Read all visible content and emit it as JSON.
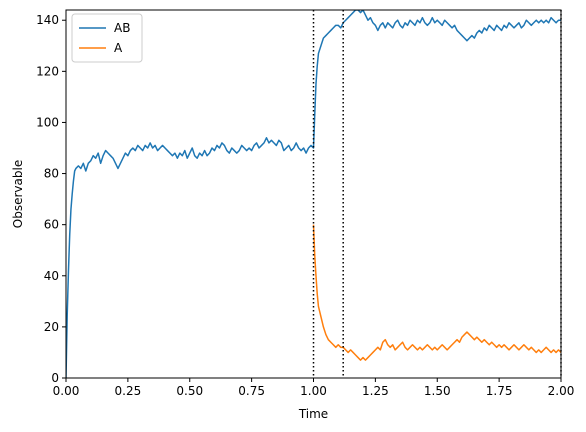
{
  "chart_data": {
    "type": "line",
    "xlabel": "Time",
    "ylabel": "Observable",
    "xlim": [
      0,
      2
    ],
    "ylim": [
      0,
      144
    ],
    "xticks": [
      0,
      0.25,
      0.5,
      0.75,
      1.0,
      1.25,
      1.5,
      1.75,
      2.0
    ],
    "xtick_labels": [
      "0.00",
      "0.25",
      "0.50",
      "0.75",
      "1.00",
      "1.25",
      "1.50",
      "1.75",
      "2.00"
    ],
    "yticks": [
      0,
      20,
      40,
      60,
      80,
      100,
      120,
      140
    ],
    "ytick_labels": [
      "0",
      "20",
      "40",
      "60",
      "80",
      "100",
      "120",
      "140"
    ],
    "grid": false,
    "legend_position": "top-left",
    "vlines": [
      1.0,
      1.12,
      2.0
    ],
    "vline_style": "dotted",
    "vline_color": "#000000",
    "series": [
      {
        "name": "AB",
        "color": "#1f77b4",
        "points": [
          [
            0.0,
            0
          ],
          [
            0.005,
            25
          ],
          [
            0.01,
            42
          ],
          [
            0.015,
            56
          ],
          [
            0.02,
            66
          ],
          [
            0.025,
            72
          ],
          [
            0.03,
            77
          ],
          [
            0.035,
            81
          ],
          [
            0.04,
            82
          ],
          [
            0.05,
            83
          ],
          [
            0.06,
            82
          ],
          [
            0.07,
            84
          ],
          [
            0.08,
            81
          ],
          [
            0.09,
            84
          ],
          [
            0.1,
            85
          ],
          [
            0.11,
            87
          ],
          [
            0.12,
            86
          ],
          [
            0.13,
            88
          ],
          [
            0.14,
            84
          ],
          [
            0.15,
            87
          ],
          [
            0.16,
            89
          ],
          [
            0.17,
            88
          ],
          [
            0.18,
            87
          ],
          [
            0.19,
            86
          ],
          [
            0.2,
            84
          ],
          [
            0.21,
            82
          ],
          [
            0.22,
            84
          ],
          [
            0.23,
            86
          ],
          [
            0.24,
            88
          ],
          [
            0.25,
            87
          ],
          [
            0.26,
            89
          ],
          [
            0.27,
            90
          ],
          [
            0.28,
            89
          ],
          [
            0.29,
            91
          ],
          [
            0.3,
            90
          ],
          [
            0.31,
            89
          ],
          [
            0.32,
            91
          ],
          [
            0.33,
            90
          ],
          [
            0.34,
            92
          ],
          [
            0.35,
            90
          ],
          [
            0.36,
            91
          ],
          [
            0.37,
            89
          ],
          [
            0.38,
            90
          ],
          [
            0.39,
            91
          ],
          [
            0.4,
            90
          ],
          [
            0.41,
            89
          ],
          [
            0.42,
            88
          ],
          [
            0.43,
            87
          ],
          [
            0.44,
            88
          ],
          [
            0.45,
            86
          ],
          [
            0.46,
            88
          ],
          [
            0.47,
            87
          ],
          [
            0.48,
            89
          ],
          [
            0.49,
            86
          ],
          [
            0.5,
            88
          ],
          [
            0.51,
            90
          ],
          [
            0.52,
            87
          ],
          [
            0.53,
            86
          ],
          [
            0.54,
            88
          ],
          [
            0.55,
            87
          ],
          [
            0.56,
            89
          ],
          [
            0.57,
            87
          ],
          [
            0.58,
            88
          ],
          [
            0.59,
            90
          ],
          [
            0.6,
            89
          ],
          [
            0.61,
            91
          ],
          [
            0.62,
            90
          ],
          [
            0.63,
            92
          ],
          [
            0.64,
            91
          ],
          [
            0.65,
            89
          ],
          [
            0.66,
            88
          ],
          [
            0.67,
            90
          ],
          [
            0.68,
            89
          ],
          [
            0.69,
            88
          ],
          [
            0.7,
            89
          ],
          [
            0.71,
            91
          ],
          [
            0.72,
            90
          ],
          [
            0.73,
            89
          ],
          [
            0.74,
            90
          ],
          [
            0.75,
            89
          ],
          [
            0.76,
            91
          ],
          [
            0.77,
            92
          ],
          [
            0.78,
            90
          ],
          [
            0.79,
            91
          ],
          [
            0.8,
            92
          ],
          [
            0.81,
            94
          ],
          [
            0.82,
            92
          ],
          [
            0.83,
            93
          ],
          [
            0.84,
            92
          ],
          [
            0.85,
            91
          ],
          [
            0.86,
            93
          ],
          [
            0.87,
            92
          ],
          [
            0.88,
            89
          ],
          [
            0.89,
            90
          ],
          [
            0.9,
            91
          ],
          [
            0.91,
            89
          ],
          [
            0.92,
            90
          ],
          [
            0.93,
            92
          ],
          [
            0.94,
            90
          ],
          [
            0.95,
            89
          ],
          [
            0.96,
            90
          ],
          [
            0.97,
            88
          ],
          [
            0.98,
            90
          ],
          [
            0.99,
            91
          ],
          [
            1.0,
            90
          ],
          [
            1.005,
            103
          ],
          [
            1.01,
            115
          ],
          [
            1.015,
            122
          ],
          [
            1.02,
            127
          ],
          [
            1.03,
            130
          ],
          [
            1.04,
            133
          ],
          [
            1.05,
            134
          ],
          [
            1.06,
            135
          ],
          [
            1.07,
            136
          ],
          [
            1.08,
            137
          ],
          [
            1.09,
            138
          ],
          [
            1.1,
            138
          ],
          [
            1.11,
            137
          ],
          [
            1.12,
            139
          ],
          [
            1.13,
            140
          ],
          [
            1.14,
            141
          ],
          [
            1.15,
            142
          ],
          [
            1.16,
            143
          ],
          [
            1.17,
            144
          ],
          [
            1.18,
            144
          ],
          [
            1.19,
            143
          ],
          [
            1.2,
            144
          ],
          [
            1.21,
            142
          ],
          [
            1.22,
            140
          ],
          [
            1.23,
            141
          ],
          [
            1.24,
            139
          ],
          [
            1.25,
            138
          ],
          [
            1.26,
            136
          ],
          [
            1.27,
            138
          ],
          [
            1.28,
            139
          ],
          [
            1.29,
            137
          ],
          [
            1.3,
            139
          ],
          [
            1.31,
            138
          ],
          [
            1.32,
            137
          ],
          [
            1.33,
            139
          ],
          [
            1.34,
            140
          ],
          [
            1.35,
            138
          ],
          [
            1.36,
            137
          ],
          [
            1.37,
            139
          ],
          [
            1.38,
            138
          ],
          [
            1.39,
            140
          ],
          [
            1.4,
            139
          ],
          [
            1.41,
            138
          ],
          [
            1.42,
            140
          ],
          [
            1.43,
            139
          ],
          [
            1.44,
            141
          ],
          [
            1.45,
            139
          ],
          [
            1.46,
            138
          ],
          [
            1.47,
            139
          ],
          [
            1.48,
            141
          ],
          [
            1.49,
            139
          ],
          [
            1.5,
            140
          ],
          [
            1.51,
            139
          ],
          [
            1.52,
            138
          ],
          [
            1.53,
            140
          ],
          [
            1.54,
            139
          ],
          [
            1.55,
            138
          ],
          [
            1.56,
            137
          ],
          [
            1.57,
            138
          ],
          [
            1.58,
            136
          ],
          [
            1.59,
            135
          ],
          [
            1.6,
            134
          ],
          [
            1.61,
            133
          ],
          [
            1.62,
            132
          ],
          [
            1.63,
            133
          ],
          [
            1.64,
            134
          ],
          [
            1.65,
            133
          ],
          [
            1.66,
            135
          ],
          [
            1.67,
            136
          ],
          [
            1.68,
            135
          ],
          [
            1.69,
            137
          ],
          [
            1.7,
            136
          ],
          [
            1.71,
            138
          ],
          [
            1.72,
            137
          ],
          [
            1.73,
            136
          ],
          [
            1.74,
            138
          ],
          [
            1.75,
            137
          ],
          [
            1.76,
            136
          ],
          [
            1.77,
            138
          ],
          [
            1.78,
            137
          ],
          [
            1.79,
            139
          ],
          [
            1.8,
            138
          ],
          [
            1.81,
            137
          ],
          [
            1.82,
            138
          ],
          [
            1.83,
            139
          ],
          [
            1.84,
            137
          ],
          [
            1.85,
            138
          ],
          [
            1.86,
            140
          ],
          [
            1.87,
            139
          ],
          [
            1.88,
            138
          ],
          [
            1.89,
            139
          ],
          [
            1.9,
            140
          ],
          [
            1.91,
            139
          ],
          [
            1.92,
            140
          ],
          [
            1.93,
            139
          ],
          [
            1.94,
            140
          ],
          [
            1.95,
            139
          ],
          [
            1.96,
            141
          ],
          [
            1.97,
            140
          ],
          [
            1.98,
            139
          ],
          [
            1.99,
            140
          ],
          [
            2.0,
            140
          ]
        ]
      },
      {
        "name": "A",
        "color": "#ff7f0e",
        "points": [
          [
            1.0,
            60
          ],
          [
            1.005,
            48
          ],
          [
            1.01,
            40
          ],
          [
            1.015,
            33
          ],
          [
            1.02,
            28
          ],
          [
            1.03,
            24
          ],
          [
            1.04,
            20
          ],
          [
            1.05,
            17
          ],
          [
            1.06,
            15
          ],
          [
            1.07,
            14
          ],
          [
            1.08,
            13
          ],
          [
            1.09,
            12
          ],
          [
            1.1,
            13
          ],
          [
            1.11,
            12
          ],
          [
            1.12,
            12
          ],
          [
            1.13,
            11
          ],
          [
            1.14,
            10
          ],
          [
            1.15,
            11
          ],
          [
            1.16,
            10
          ],
          [
            1.17,
            9
          ],
          [
            1.18,
            8
          ],
          [
            1.19,
            7
          ],
          [
            1.2,
            8
          ],
          [
            1.21,
            7
          ],
          [
            1.22,
            8
          ],
          [
            1.23,
            9
          ],
          [
            1.24,
            10
          ],
          [
            1.25,
            11
          ],
          [
            1.26,
            12
          ],
          [
            1.27,
            11
          ],
          [
            1.28,
            14
          ],
          [
            1.29,
            15
          ],
          [
            1.3,
            13
          ],
          [
            1.31,
            12
          ],
          [
            1.32,
            13
          ],
          [
            1.33,
            11
          ],
          [
            1.34,
            12
          ],
          [
            1.35,
            13
          ],
          [
            1.36,
            14
          ],
          [
            1.37,
            12
          ],
          [
            1.38,
            11
          ],
          [
            1.39,
            12
          ],
          [
            1.4,
            13
          ],
          [
            1.41,
            12
          ],
          [
            1.42,
            11
          ],
          [
            1.43,
            12
          ],
          [
            1.44,
            11
          ],
          [
            1.45,
            12
          ],
          [
            1.46,
            13
          ],
          [
            1.47,
            12
          ],
          [
            1.48,
            11
          ],
          [
            1.49,
            12
          ],
          [
            1.5,
            11
          ],
          [
            1.51,
            12
          ],
          [
            1.52,
            13
          ],
          [
            1.53,
            12
          ],
          [
            1.54,
            11
          ],
          [
            1.55,
            12
          ],
          [
            1.56,
            13
          ],
          [
            1.57,
            14
          ],
          [
            1.58,
            15
          ],
          [
            1.59,
            14
          ],
          [
            1.6,
            16
          ],
          [
            1.61,
            17
          ],
          [
            1.62,
            18
          ],
          [
            1.63,
            17
          ],
          [
            1.64,
            16
          ],
          [
            1.65,
            15
          ],
          [
            1.66,
            16
          ],
          [
            1.67,
            15
          ],
          [
            1.68,
            14
          ],
          [
            1.69,
            15
          ],
          [
            1.7,
            14
          ],
          [
            1.71,
            13
          ],
          [
            1.72,
            14
          ],
          [
            1.73,
            13
          ],
          [
            1.74,
            12
          ],
          [
            1.75,
            13
          ],
          [
            1.76,
            12
          ],
          [
            1.77,
            13
          ],
          [
            1.78,
            12
          ],
          [
            1.79,
            11
          ],
          [
            1.8,
            12
          ],
          [
            1.81,
            13
          ],
          [
            1.82,
            12
          ],
          [
            1.83,
            11
          ],
          [
            1.84,
            12
          ],
          [
            1.85,
            13
          ],
          [
            1.86,
            12
          ],
          [
            1.87,
            11
          ],
          [
            1.88,
            12
          ],
          [
            1.89,
            11
          ],
          [
            1.9,
            10
          ],
          [
            1.91,
            11
          ],
          [
            1.92,
            10
          ],
          [
            1.93,
            11
          ],
          [
            1.94,
            12
          ],
          [
            1.95,
            11
          ],
          [
            1.96,
            10
          ],
          [
            1.97,
            11
          ],
          [
            1.98,
            10
          ],
          [
            1.99,
            11
          ],
          [
            2.0,
            10
          ]
        ]
      }
    ]
  }
}
